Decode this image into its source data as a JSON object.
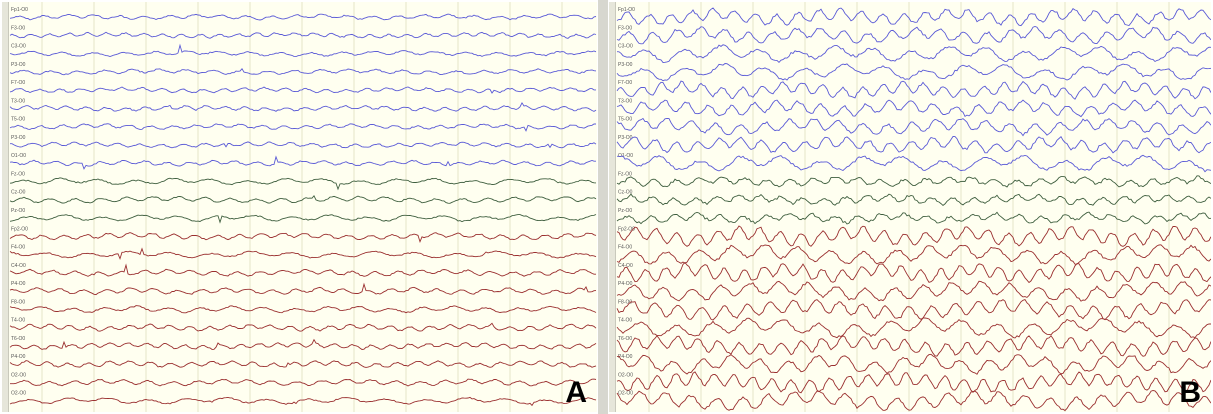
{
  "panels": [
    {
      "id": "A",
      "label": "A",
      "channel_rows": 22,
      "blue_channels": [
        "Fp1-O0",
        "F3-O0",
        "C3-O0",
        "P3-O0",
        "F7-O0",
        "T3-O0",
        "T5-O0",
        "P3-O0",
        "O1-O0"
      ],
      "green_channels": [
        "Fz-O0",
        "Cz-O0",
        "Pz-O0"
      ],
      "red_channels": [
        "Fp2-O0",
        "F4-O0",
        "C4-O0",
        "P4-O0",
        "F8-O0",
        "T4-O0",
        "T6-O0",
        "P4-O0",
        "O2-O0",
        "O2-O0"
      ],
      "activity": "low"
    },
    {
      "id": "B",
      "label": "B",
      "channel_rows": 22,
      "blue_channels": [
        "Fp1-O0",
        "F3-O0",
        "C3-O0",
        "P3-O0",
        "F7-O0",
        "T3-O0",
        "T5-O0",
        "P3-O0",
        "O1-O0"
      ],
      "green_channels": [
        "Fz-O0",
        "Cz-O0",
        "Pz-O0"
      ],
      "red_channels": [
        "Fp2-O0",
        "F4-O0",
        "C4-O0",
        "P4-O0",
        "F8-O0",
        "T4-O0",
        "T6-O0",
        "P4-O0",
        "O2-O0",
        "O2-O0"
      ],
      "activity": "high"
    }
  ],
  "colors": {
    "background": "#fffff0",
    "blue_trace": "#5a5ad6",
    "green_trace": "#3e5e3e",
    "red_trace": "#9a2f2f",
    "grid": "#e5e5c8"
  }
}
